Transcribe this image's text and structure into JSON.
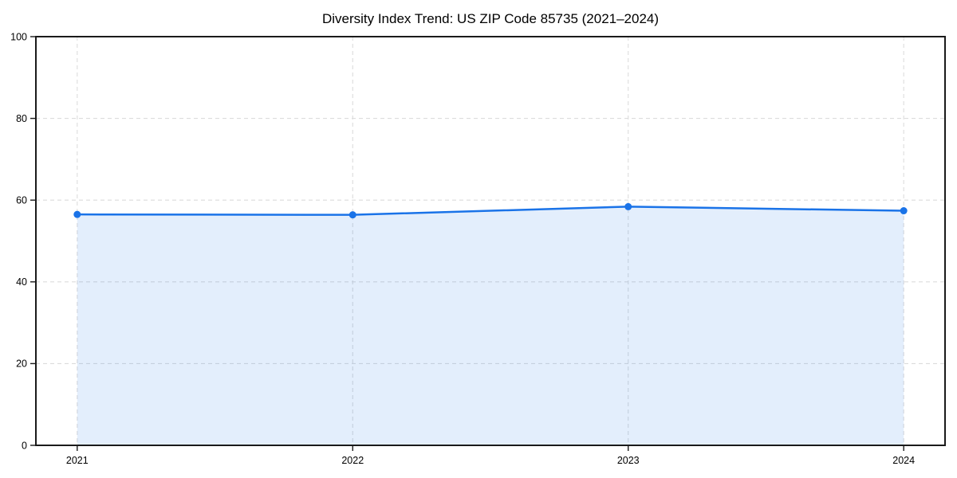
{
  "chart_data": {
    "type": "area",
    "title": "Diversity Index Trend: US ZIP Code 85735 (2021–2024)",
    "x": [
      2021,
      2022,
      2023,
      2024
    ],
    "series": [
      {
        "name": "Diversity Index",
        "values": [
          56.5,
          56.4,
          58.4,
          57.4
        ]
      }
    ],
    "xlabel": "",
    "ylabel": "",
    "xlim": [
      2020.85,
      2024.15
    ],
    "ylim": [
      0,
      100
    ],
    "xticks": [
      2021,
      2022,
      2023,
      2024
    ],
    "yticks": [
      0,
      20,
      40,
      60,
      80,
      100
    ],
    "grid": "dashed",
    "legend": "none",
    "colors": {
      "line": "#1a73e8",
      "marker": "#1a73e8",
      "fill": "#1a73e8",
      "fill_opacity": 0.12,
      "grid": "#dcdcdc",
      "spine": "#1a1a1a",
      "text": "#000000",
      "background": "#ffffff"
    }
  }
}
